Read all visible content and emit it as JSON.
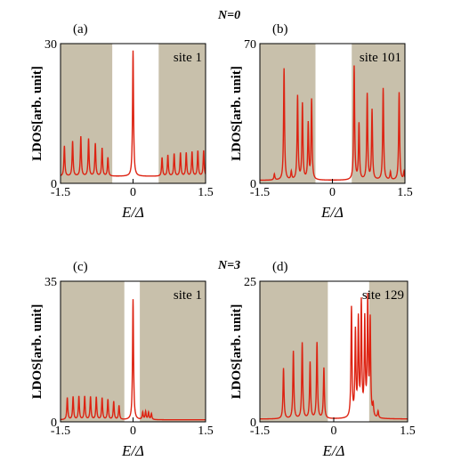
{
  "figure": {
    "group_labels": [
      "N=0",
      "N=3"
    ]
  },
  "chart_data": [
    {
      "panel": "(a)",
      "type": "line",
      "group": "N=0",
      "annotation": "site 1",
      "xlabel": "E/Δ",
      "ylabel": "LDOS[arb. unit]",
      "xlim": [
        -1.5,
        1.5
      ],
      "ylim": [
        0,
        30
      ],
      "x_ticks": [
        "-1.5",
        "0",
        "1.5"
      ],
      "y_ticks": [
        "0",
        "30"
      ],
      "gap_region": [
        -0.43,
        0.53
      ],
      "line_color": "#dd2211",
      "shade_color": "#c8c0ab",
      "base": 1.5,
      "peaks": [
        [
          -1.42,
          6.5
        ],
        [
          -1.25,
          7.5
        ],
        [
          -1.08,
          8.5
        ],
        [
          -0.92,
          8.0
        ],
        [
          -0.78,
          7.0
        ],
        [
          -0.64,
          6.0
        ],
        [
          -0.52,
          4.0
        ],
        [
          0.0,
          27.0
        ],
        [
          0.6,
          4.0
        ],
        [
          0.72,
          4.5
        ],
        [
          0.85,
          4.8
        ],
        [
          0.98,
          5.0
        ],
        [
          1.1,
          5.0
        ],
        [
          1.22,
          5.2
        ],
        [
          1.34,
          5.4
        ],
        [
          1.46,
          5.5
        ]
      ]
    },
    {
      "panel": "(b)",
      "type": "line",
      "group": "N=0",
      "annotation": "site 101",
      "xlabel": "E/Δ",
      "ylabel": "LDOS[arb. unit]",
      "xlim": [
        -1.5,
        1.5
      ],
      "ylim": [
        0,
        70
      ],
      "x_ticks": [
        "-1.5",
        "0",
        "1.5"
      ],
      "y_ticks": [
        "0",
        "70"
      ],
      "gap_region": [
        -0.35,
        0.4
      ],
      "line_color": "#dd2211",
      "shade_color": "#c8c0ab",
      "base": 1.5,
      "peaks": [
        [
          -1.2,
          3.0
        ],
        [
          -1.0,
          56.0
        ],
        [
          -0.85,
          4.0
        ],
        [
          -0.72,
          42.0
        ],
        [
          -0.62,
          38.0
        ],
        [
          -0.5,
          28.0
        ],
        [
          -0.43,
          40.0
        ],
        [
          0.45,
          57.0
        ],
        [
          0.55,
          28.0
        ],
        [
          0.72,
          43.0
        ],
        [
          0.82,
          35.0
        ],
        [
          1.05,
          46.0
        ],
        [
          1.2,
          4.0
        ],
        [
          1.38,
          44.0
        ],
        [
          1.48,
          4.0
        ]
      ]
    },
    {
      "panel": "(c)",
      "type": "line",
      "group": "N=3",
      "annotation": "site 1",
      "xlabel": "E/Δ",
      "ylabel": "LDOS[arb. unit]",
      "xlim": [
        -1.5,
        1.5
      ],
      "ylim": [
        0,
        35
      ],
      "x_ticks": [
        "-1.5",
        "0",
        "1.5"
      ],
      "y_ticks": [
        "0",
        "35"
      ],
      "gap_region": [
        -0.18,
        0.14
      ],
      "line_color": "#dd2211",
      "shade_color": "#c8c0ab",
      "base": 0.5,
      "peaks": [
        [
          -1.36,
          5.5
        ],
        [
          -1.24,
          5.7
        ],
        [
          -1.12,
          5.8
        ],
        [
          -1.0,
          5.8
        ],
        [
          -0.88,
          5.7
        ],
        [
          -0.76,
          5.6
        ],
        [
          -0.64,
          5.4
        ],
        [
          -0.52,
          5.0
        ],
        [
          -0.4,
          4.5
        ],
        [
          -0.29,
          3.5
        ],
        [
          0.0,
          30.0
        ],
        [
          0.2,
          1.8
        ],
        [
          0.26,
          2.0
        ],
        [
          0.32,
          1.8
        ],
        [
          0.38,
          1.5
        ]
      ]
    },
    {
      "panel": "(d)",
      "type": "line",
      "group": "N=3",
      "annotation": "site 129",
      "xlabel": "E/Δ",
      "ylabel": "LDOS[arb. unit]",
      "xlim": [
        -1.5,
        1.5
      ],
      "ylim": [
        0,
        25
      ],
      "x_ticks": [
        "-1.5",
        "0",
        "1.5"
      ],
      "y_ticks": [
        "0",
        "25"
      ],
      "gap_region": [
        -0.12,
        0.72
      ],
      "line_color": "#dd2211",
      "shade_color": "#c8c0ab",
      "base": 0.5,
      "peaks": [
        [
          -1.02,
          9.0
        ],
        [
          -0.82,
          12.0
        ],
        [
          -0.64,
          13.5
        ],
        [
          -0.48,
          10.0
        ],
        [
          -0.34,
          13.5
        ],
        [
          -0.2,
          9.0
        ],
        [
          0.36,
          19.5
        ],
        [
          0.44,
          15.0
        ],
        [
          0.5,
          17.0
        ],
        [
          0.56,
          20.0
        ],
        [
          0.63,
          17.0
        ],
        [
          0.69,
          20.5
        ],
        [
          0.74,
          17.0
        ],
        [
          0.8,
          2.0
        ],
        [
          0.9,
          1.2
        ]
      ]
    }
  ]
}
